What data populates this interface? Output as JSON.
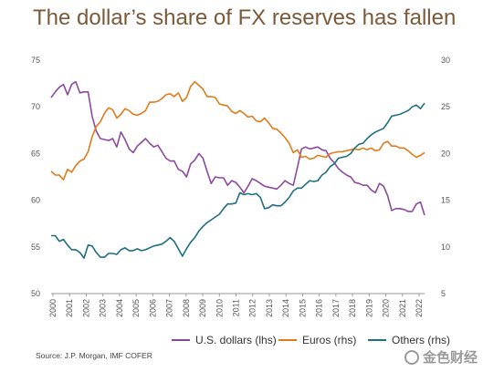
{
  "title": "The dollar’s share of FX reserves has fallen",
  "source": "Source: J.P. Morgan, IMF COFER",
  "watermark": "金色财经",
  "chart_data": {
    "type": "line",
    "title": "The dollar’s share of FX reserves has fallen",
    "left_axis": {
      "ylim": [
        50,
        75
      ],
      "ticks": [
        50,
        55,
        60,
        65,
        70,
        75
      ]
    },
    "right_axis": {
      "ylim": [
        5,
        30
      ],
      "ticks": [
        5,
        10,
        15,
        20,
        25,
        30
      ]
    },
    "x_ticks": [
      "2000",
      "2001",
      "2002",
      "2003",
      "2004",
      "2005",
      "2006",
      "2007",
      "2008",
      "2009",
      "2010",
      "2011",
      "2012",
      "2013",
      "2014",
      "2015",
      "2016",
      "2017",
      "2018",
      "2019",
      "2020",
      "2021",
      "2022"
    ],
    "legend_position": "bottom",
    "series": [
      {
        "name": "U.S. dollars (lhs)",
        "axis": "left",
        "color": "#8b4a9e",
        "x": [
          2000,
          2000.25,
          2000.5,
          2000.75,
          2001,
          2001.25,
          2001.5,
          2001.75,
          2002,
          2002.25,
          2002.5,
          2002.75,
          2003,
          2003.25,
          2003.5,
          2003.75,
          2004,
          2004.25,
          2004.5,
          2004.75,
          2005,
          2005.25,
          2005.5,
          2005.75,
          2006,
          2006.25,
          2006.5,
          2006.75,
          2007,
          2007.25,
          2007.5,
          2007.75,
          2008,
          2008.25,
          2008.5,
          2008.75,
          2009,
          2009.25,
          2009.5,
          2009.75,
          2010,
          2010.25,
          2010.5,
          2010.75,
          2011,
          2011.25,
          2011.5,
          2011.75,
          2012,
          2012.25,
          2012.5,
          2012.75,
          2013,
          2013.25,
          2013.5,
          2013.75,
          2014,
          2014.25,
          2014.5,
          2014.75,
          2015,
          2015.25,
          2015.5,
          2015.75,
          2016,
          2016.25,
          2016.5,
          2016.75,
          2017,
          2017.25,
          2017.5,
          2017.75,
          2018,
          2018.25,
          2018.5,
          2018.75,
          2019,
          2019.25,
          2019.5,
          2019.75,
          2020,
          2020.25,
          2020.5,
          2020.75,
          2021,
          2021.25,
          2021.5,
          2021.75,
          2022,
          2022.25,
          2022.5,
          2022.75
        ],
        "values": [
          71,
          71.6,
          72.1,
          72.4,
          71.3,
          72.4,
          72.7,
          71.5,
          71.6,
          71.6,
          69,
          67.4,
          66.6,
          66.5,
          66.4,
          66.6,
          65.7,
          67.3,
          66.5,
          65.5,
          65.1,
          65.8,
          66.2,
          66.6,
          66.1,
          65.7,
          65.9,
          65.2,
          64.5,
          64.2,
          64.2,
          63.3,
          63.1,
          62.5,
          63.9,
          64.3,
          65,
          64.5,
          63.1,
          61.8,
          62.5,
          62.4,
          62.4,
          61.6,
          62.1,
          61.9,
          61.4,
          60.8,
          61.5,
          62.3,
          62.1,
          61.8,
          61.5,
          61.4,
          61.3,
          61.2,
          61.6,
          62.1,
          61.8,
          61.6,
          63.5,
          65.5,
          65.7,
          65.5,
          65.6,
          65.7,
          65.4,
          65.3,
          64.5,
          64,
          63.4,
          63,
          62.7,
          62.5,
          61.9,
          61.8,
          61.6,
          61.6,
          61.1,
          60.8,
          61.8,
          61.5,
          60.5,
          58.9,
          59.1,
          59.1,
          59,
          58.8,
          58.8,
          59.6,
          59.8,
          58.4
        ]
      },
      {
        "name": "Euros (rhs)",
        "axis": "right",
        "color": "#e07b1a",
        "x": [
          2000,
          2000.25,
          2000.5,
          2000.75,
          2001,
          2001.25,
          2001.5,
          2001.75,
          2002,
          2002.25,
          2002.5,
          2002.75,
          2003,
          2003.25,
          2003.5,
          2003.75,
          2004,
          2004.25,
          2004.5,
          2004.75,
          2005,
          2005.25,
          2005.5,
          2005.75,
          2006,
          2006.25,
          2006.5,
          2006.75,
          2007,
          2007.25,
          2007.5,
          2007.75,
          2008,
          2008.25,
          2008.5,
          2008.75,
          2009,
          2009.25,
          2009.5,
          2009.75,
          2010,
          2010.25,
          2010.5,
          2010.75,
          2011,
          2011.25,
          2011.5,
          2011.75,
          2012,
          2012.25,
          2012.5,
          2012.75,
          2013,
          2013.25,
          2013.5,
          2013.75,
          2014,
          2014.25,
          2014.5,
          2014.75,
          2015,
          2015.25,
          2015.5,
          2015.75,
          2016,
          2016.25,
          2016.5,
          2016.75,
          2017,
          2017.25,
          2017.5,
          2017.75,
          2018,
          2018.25,
          2018.5,
          2018.75,
          2019,
          2019.25,
          2019.5,
          2019.75,
          2020,
          2020.25,
          2020.5,
          2020.75,
          2021,
          2021.25,
          2021.5,
          2021.75,
          2022,
          2022.25,
          2022.5,
          2022.75
        ],
        "values": [
          18.1,
          17.7,
          17.7,
          17.2,
          18.3,
          18,
          18.7,
          19.2,
          19.4,
          20.2,
          21.8,
          22.9,
          23.4,
          24.3,
          24.9,
          24.7,
          23.8,
          24.2,
          24.8,
          24.6,
          24.2,
          24.1,
          24.3,
          24.6,
          25.5,
          25.5,
          25.6,
          25.9,
          26.3,
          26.4,
          26.1,
          26.5,
          25.6,
          26,
          27.2,
          27.7,
          27.3,
          26.9,
          26.1,
          26.1,
          26,
          25.3,
          25.2,
          25.1,
          24.5,
          24.3,
          24.6,
          24.3,
          23.9,
          24,
          23.5,
          23.4,
          23.8,
          23.3,
          22.7,
          22.6,
          22.2,
          21.7,
          21.1,
          20.1,
          20.4,
          19.6,
          19.7,
          19.4,
          19.5,
          19.8,
          19.7,
          19.6,
          20,
          20.1,
          20.2,
          20.2,
          20.3,
          20.4,
          20.5,
          20.4,
          20.6,
          20.4,
          20.6,
          20.3,
          20.4,
          21.1,
          21.3,
          20.8,
          20.8,
          20.6,
          20.6,
          20.3,
          19.9,
          19.6,
          19.8,
          20.1
        ]
      },
      {
        "name": "Others (rhs)",
        "axis": "right",
        "color": "#1f6e82",
        "x": [
          2000,
          2000.25,
          2000.5,
          2000.75,
          2001,
          2001.25,
          2001.5,
          2001.75,
          2002,
          2002.25,
          2002.5,
          2002.75,
          2003,
          2003.25,
          2003.5,
          2003.75,
          2004,
          2004.25,
          2004.5,
          2004.75,
          2005,
          2005.25,
          2005.5,
          2005.75,
          2006,
          2006.25,
          2006.5,
          2006.75,
          2007,
          2007.25,
          2007.5,
          2007.75,
          2008,
          2008.25,
          2008.5,
          2008.75,
          2009,
          2009.25,
          2009.5,
          2009.75,
          2010,
          2010.25,
          2010.5,
          2010.75,
          2011,
          2011.25,
          2011.5,
          2011.75,
          2012,
          2012.25,
          2012.5,
          2012.75,
          2013,
          2013.25,
          2013.5,
          2013.75,
          2014,
          2014.25,
          2014.5,
          2014.75,
          2015,
          2015.25,
          2015.5,
          2015.75,
          2016,
          2016.25,
          2016.5,
          2016.75,
          2017,
          2017.25,
          2017.5,
          2017.75,
          2018,
          2018.25,
          2018.5,
          2018.75,
          2019,
          2019.25,
          2019.5,
          2019.75,
          2020,
          2020.25,
          2020.5,
          2020.75,
          2021,
          2021.25,
          2021.5,
          2021.75,
          2022,
          2022.25,
          2022.5,
          2022.75
        ],
        "values": [
          11.2,
          11.2,
          10.6,
          10.8,
          10.2,
          9.7,
          9.7,
          9.4,
          8.8,
          10.2,
          10.1,
          9.4,
          8.9,
          8.9,
          9.3,
          9.3,
          9.2,
          9.7,
          9.9,
          9.6,
          9.6,
          9.8,
          9.6,
          9.7,
          9.9,
          10.1,
          10.2,
          10.3,
          10.6,
          11,
          10.6,
          9.8,
          9,
          9.8,
          10.5,
          11,
          11.7,
          12.2,
          12.6,
          12.9,
          13.2,
          13.5,
          14.1,
          14.6,
          14.6,
          14.7,
          15.8,
          15.6,
          15.7,
          15.6,
          15.7,
          15.3,
          14.1,
          14.2,
          14.5,
          14.4,
          14.4,
          14.8,
          15.3,
          16,
          16.3,
          16.3,
          16.7,
          17.1,
          17,
          17.1,
          17.7,
          18,
          18.6,
          18.9,
          19.5,
          19.6,
          19.7,
          20,
          20.6,
          21,
          21.1,
          21.6,
          22,
          22.3,
          22.5,
          22.7,
          23.3,
          24,
          24.1,
          24.2,
          24.4,
          24.6,
          25,
          25.2,
          24.8,
          25.4
        ]
      }
    ]
  }
}
